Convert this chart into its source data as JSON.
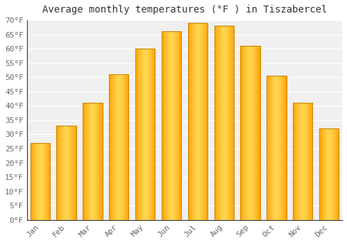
{
  "title": "Average monthly temperatures (°F ) in Tiszabercel",
  "months": [
    "Jan",
    "Feb",
    "Mar",
    "Apr",
    "May",
    "Jun",
    "Jul",
    "Aug",
    "Sep",
    "Oct",
    "Nov",
    "Dec"
  ],
  "values": [
    27,
    33,
    41,
    51,
    60,
    66,
    69,
    68,
    61,
    50.5,
    41,
    32
  ],
  "bar_color_center": "#FFD54F",
  "bar_color_edge": "#FFA000",
  "ylim": [
    0,
    70
  ],
  "yticks": [
    0,
    5,
    10,
    15,
    20,
    25,
    30,
    35,
    40,
    45,
    50,
    55,
    60,
    65,
    70
  ],
  "ytick_labels": [
    "0°F",
    "5°F",
    "10°F",
    "15°F",
    "20°F",
    "25°F",
    "30°F",
    "35°F",
    "40°F",
    "45°F",
    "50°F",
    "55°F",
    "60°F",
    "65°F",
    "70°F"
  ],
  "bg_color": "#ffffff",
  "plot_bg_color": "#f0f0f0",
  "grid_color": "#ffffff",
  "title_fontsize": 10,
  "tick_fontsize": 8,
  "bar_edge_color": "#CC8800",
  "spine_color": "#333333"
}
